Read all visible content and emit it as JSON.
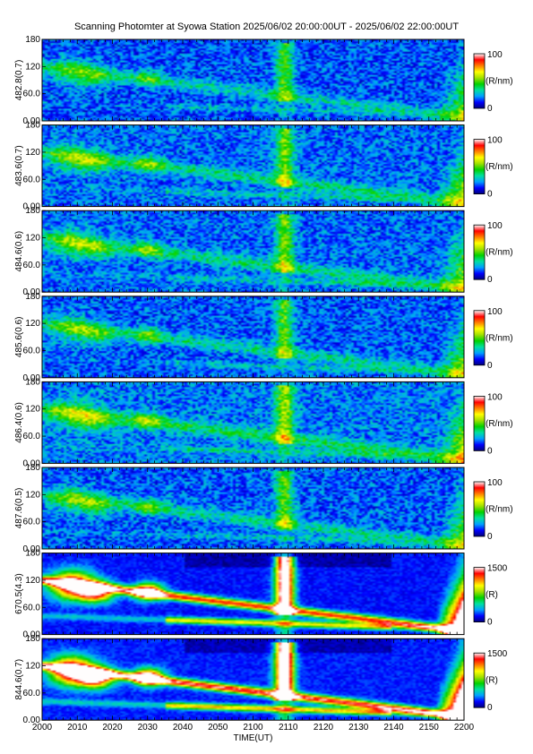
{
  "chart_data": {
    "type": "heatmap",
    "title": "Scanning Photomter at Syowa Station 2025/06/02 20:00:00UT - 2025/06/02 22:00:00UT",
    "xlabel": "TIME(UT)",
    "x_ticks": [
      "2000",
      "2010",
      "2020",
      "2030",
      "2040",
      "2050",
      "2100",
      "2110",
      "2120",
      "2130",
      "2140",
      "2150",
      "2200"
    ],
    "y_ticks": [
      "0.00",
      "60.0",
      "120",
      "180"
    ],
    "ylim": [
      0,
      180
    ],
    "panels": [
      {
        "ylabel": "482.8(0.7)",
        "cbar_max": "100",
        "cbar_min": "0",
        "cbar_unit": "(R/nm)",
        "gain": 0.55
      },
      {
        "ylabel": "483.6(0.7)",
        "cbar_max": "100",
        "cbar_min": "0",
        "cbar_unit": "(R/nm)",
        "gain": 0.62
      },
      {
        "ylabel": "484.6(0.6)",
        "cbar_max": "100",
        "cbar_min": "0",
        "cbar_unit": "(R/nm)",
        "gain": 0.62
      },
      {
        "ylabel": "485.6(0.6)",
        "cbar_max": "100",
        "cbar_min": "0",
        "cbar_unit": "(R/nm)",
        "gain": 0.58
      },
      {
        "ylabel": "486.4(0.6)",
        "cbar_max": "100",
        "cbar_min": "0",
        "cbar_unit": "(R/nm)",
        "gain": 0.68
      },
      {
        "ylabel": "487.6(0.5)",
        "cbar_max": "100",
        "cbar_min": "0",
        "cbar_unit": "(R/nm)",
        "gain": 0.58
      },
      {
        "ylabel": "670.5(4.3)",
        "cbar_max": "1500",
        "cbar_min": "0",
        "cbar_unit": "(R)",
        "gain": 1.0
      },
      {
        "ylabel": "844.6(0.7)",
        "cbar_max": "1500",
        "cbar_min": "0",
        "cbar_unit": "(R)",
        "gain": 1.08
      }
    ],
    "colormap": [
      "#00007a",
      "#0000ff",
      "#00a0ff",
      "#00e0a0",
      "#00d000",
      "#a0e000",
      "#ffff00",
      "#ff8000",
      "#ff0000",
      "#ffffff"
    ]
  }
}
